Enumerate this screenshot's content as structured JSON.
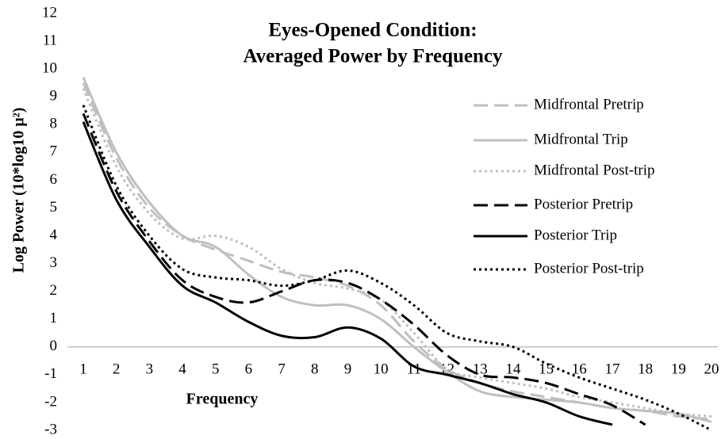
{
  "chart_data": {
    "type": "line",
    "title": [
      "Eyes-Opened Condition:",
      "Averaged Power by Frequency"
    ],
    "x_label": "Frequency",
    "y_label": "Log Power (10*log10 µ²)",
    "categories": [
      1,
      2,
      3,
      4,
      5,
      6,
      7,
      8,
      9,
      10,
      11,
      12,
      13,
      14,
      15,
      16,
      17,
      18,
      19,
      20
    ],
    "ylim": [
      -3,
      12
    ],
    "yticks": [
      -3,
      -2,
      -1,
      0,
      1,
      2,
      3,
      4,
      5,
      6,
      7,
      8,
      9,
      10,
      11,
      12
    ],
    "grid": false,
    "legend": "right",
    "series": [
      {
        "name": "Midfrontal Pretrip",
        "color": "#bfbfbf",
        "line_style": "dashed",
        "values": [
          9.5,
          6.8,
          5.0,
          4.0,
          3.5,
          3.1,
          2.7,
          2.5,
          2.2,
          1.5,
          0.2,
          -0.8,
          -1.3,
          -1.6,
          -1.8,
          -2.0,
          -2.2,
          -2.3,
          -2.5,
          -2.6
        ]
      },
      {
        "name": "Midfrontal Trip",
        "color": "#bfbfbf",
        "line_style": "solid",
        "values": [
          9.7,
          7.0,
          5.2,
          4.0,
          3.6,
          2.6,
          1.8,
          1.5,
          1.5,
          1.0,
          0.0,
          -0.9,
          -1.6,
          -1.8,
          -1.9,
          -2.0,
          -2.2,
          -2.3,
          -2.4,
          -2.7
        ]
      },
      {
        "name": "Midfrontal Post-trip",
        "color": "#bfbfbf",
        "line_style": "dotted",
        "values": [
          9.3,
          6.5,
          4.8,
          3.9,
          4.0,
          3.6,
          2.8,
          2.3,
          2.1,
          1.7,
          0.5,
          -0.8,
          -1.1,
          -1.3,
          -1.5,
          -1.8,
          -2.0,
          -2.2,
          -2.4,
          -2.5
        ]
      },
      {
        "name": "Posterior Pretrip",
        "color": "#000000",
        "line_style": "dashed",
        "values": [
          8.4,
          5.6,
          3.8,
          2.4,
          1.8,
          1.6,
          2.0,
          2.4,
          2.3,
          1.7,
          0.8,
          -0.3,
          -1.0,
          -1.1,
          -1.3,
          -1.7,
          -2.1,
          -2.8,
          null,
          null
        ]
      },
      {
        "name": "Posterior Trip",
        "color": "#000000",
        "line_style": "solid",
        "values": [
          8.1,
          5.3,
          3.6,
          2.2,
          1.6,
          0.9,
          0.4,
          0.35,
          0.7,
          0.3,
          -0.7,
          -1.0,
          -1.3,
          -1.7,
          -2.0,
          -2.5,
          -2.8,
          null,
          null,
          null
        ]
      },
      {
        "name": "Posterior Post-trip",
        "color": "#000000",
        "line_style": "dotted",
        "values": [
          8.7,
          5.8,
          4.0,
          2.8,
          2.5,
          2.4,
          2.2,
          2.4,
          2.75,
          2.3,
          1.5,
          0.5,
          0.2,
          0.0,
          -0.6,
          -1.1,
          -1.5,
          -1.9,
          -2.4,
          -3.0
        ]
      }
    ]
  }
}
